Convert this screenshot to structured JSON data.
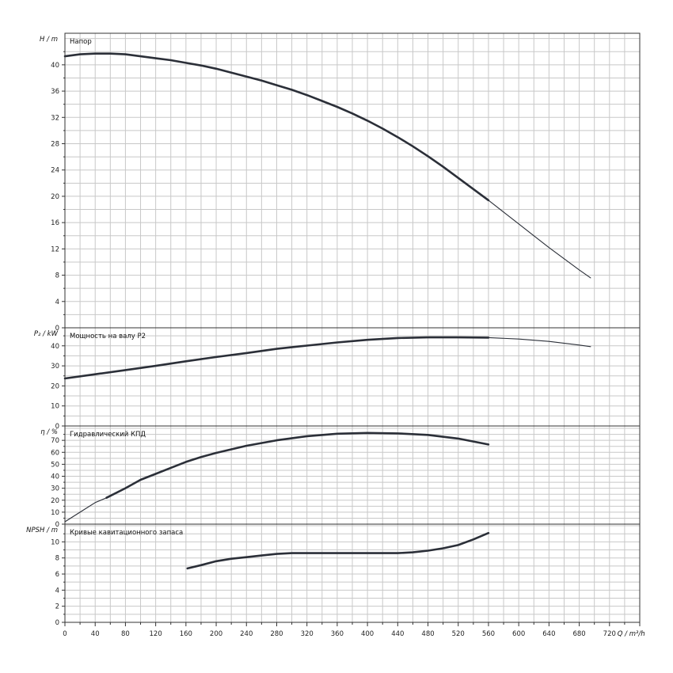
{
  "chart_data": {
    "type": "line",
    "x_axis": {
      "label": "Q / m³/h",
      "min": 0,
      "max": 760,
      "ticks": [
        0,
        40,
        80,
        120,
        160,
        200,
        240,
        280,
        320,
        360,
        400,
        440,
        480,
        520,
        560,
        600,
        640,
        680,
        720
      ]
    },
    "grid": true,
    "panels": [
      {
        "id": "head",
        "title": "Напор",
        "ylabel": "H / m",
        "ylim": [
          0,
          44.8
        ],
        "yticks": [
          0,
          4,
          8,
          12,
          16,
          20,
          24,
          28,
          32,
          36,
          40
        ],
        "series": [
          {
            "style": "thick",
            "x": [
              0,
              20,
              40,
              60,
              80,
              100,
              120,
              140,
              160,
              180,
              200,
              220,
              240,
              260,
              280,
              300,
              320,
              340,
              360,
              380,
              400,
              420,
              440,
              460,
              480,
              500,
              520,
              540,
              560
            ],
            "y": [
              41.3,
              41.6,
              41.7,
              41.7,
              41.6,
              41.3,
              41.0,
              40.7,
              40.3,
              39.9,
              39.4,
              38.8,
              38.2,
              37.6,
              36.9,
              36.2,
              35.4,
              34.5,
              33.6,
              32.6,
              31.5,
              30.3,
              29.0,
              27.6,
              26.1,
              24.5,
              22.8,
              21.1,
              19.4
            ]
          },
          {
            "style": "thin",
            "x": [
              560,
              580,
              600,
              620,
              640,
              660,
              680,
              695
            ],
            "y": [
              19.4,
              17.6,
              15.8,
              14.0,
              12.2,
              10.5,
              8.8,
              7.6
            ]
          }
        ]
      },
      {
        "id": "power",
        "title": "Мощность на валу P2",
        "ylabel": "P₂ / kW",
        "ylim": [
          0,
          49
        ],
        "yticks": [
          0,
          10,
          20,
          30,
          40
        ],
        "series": [
          {
            "style": "thick",
            "x": [
              0,
              40,
              80,
              120,
              160,
              200,
              240,
              280,
              320,
              360,
              400,
              440,
              480,
              520,
              560
            ],
            "y": [
              23.7,
              25.8,
              27.9,
              30.0,
              32.3,
              34.4,
              36.4,
              38.5,
              40.1,
              41.7,
              43.0,
              43.9,
              44.2,
              44.2,
              44.1
            ]
          },
          {
            "style": "thin",
            "x": [
              560,
              600,
              640,
              680,
              695
            ],
            "y": [
              44.1,
              43.4,
              42.2,
              40.4,
              39.6
            ]
          }
        ]
      },
      {
        "id": "efficiency",
        "title": "Гидравлический КПД",
        "ylabel": "η / %",
        "ylim": [
          0,
          82
        ],
        "yticks": [
          0,
          10,
          20,
          30,
          40,
          50,
          60,
          70
        ],
        "series": [
          {
            "style": "thin",
            "x": [
              0,
              20,
              40,
              55
            ],
            "y": [
              2,
              10,
              18,
              22
            ]
          },
          {
            "style": "thick",
            "x": [
              55,
              80,
              100,
              120,
              140,
              160,
              180,
              200,
              240,
              280,
              320,
              360,
              400,
              440,
              480,
              520,
              560
            ],
            "y": [
              22,
              30,
              37,
              42,
              47,
              52,
              56,
              59.5,
              65.5,
              70,
              73.5,
              75.5,
              76.2,
              75.8,
              74.5,
              71.5,
              66.5
            ]
          }
        ]
      },
      {
        "id": "npsh",
        "title": "Кривые кавитационного запаса",
        "ylabel": "NPSH / m",
        "ylim": [
          0,
          12.2
        ],
        "yticks": [
          0,
          2,
          4,
          6,
          8,
          10
        ],
        "series": [
          {
            "style": "thick",
            "x": [
              162,
              180,
              200,
              220,
              240,
              260,
              280,
              300,
              320,
              360,
              400,
              440,
              460,
              480,
              500,
              520,
              540,
              560
            ],
            "y": [
              6.7,
              7.1,
              7.6,
              7.9,
              8.1,
              8.3,
              8.5,
              8.6,
              8.6,
              8.6,
              8.6,
              8.6,
              8.7,
              8.9,
              9.2,
              9.6,
              10.3,
              11.1
            ]
          }
        ]
      }
    ]
  }
}
